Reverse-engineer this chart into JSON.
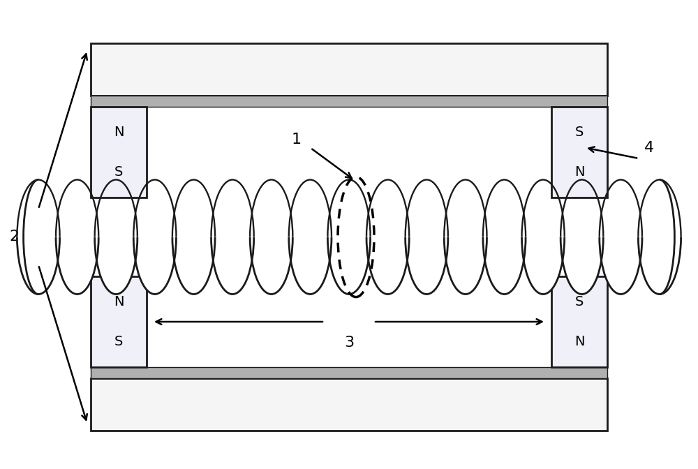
{
  "bg_color": "#ffffff",
  "line_color": "#1a1a1a",
  "magnet_fill": "#f0f0f8",
  "magnet_border": "#1a1a1a",
  "yoke_fill": "#f5f5f5",
  "yoke_border": "#1a1a1a",
  "strip_fill": "#b0b0b0",
  "rope_fill": "#ffffff",
  "rope_outline": "#1a1a1a",
  "label_fontsize": 16,
  "ns_fontsize": 14,
  "fig_w": 10.0,
  "fig_h": 6.72,
  "xlim": [
    0,
    10
  ],
  "ylim": [
    0,
    6.72
  ]
}
